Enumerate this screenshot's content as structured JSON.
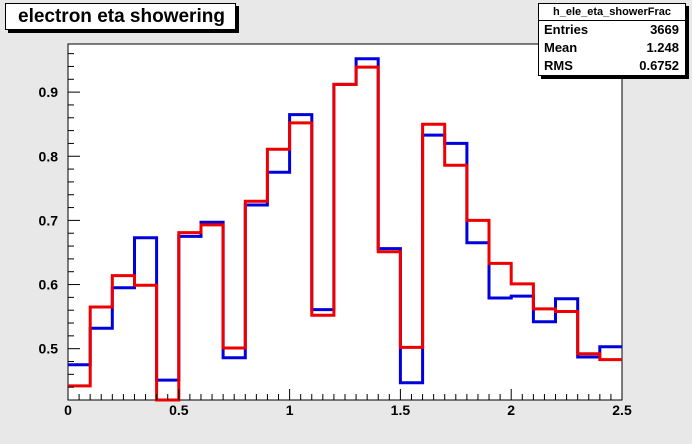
{
  "chart_data": {
    "type": "step-histogram",
    "title": "electron eta showering",
    "xlabel": "",
    "ylabel": "",
    "xlim": [
      0,
      2.5
    ],
    "ylim": [
      0.42,
      0.975
    ],
    "xticks": [
      0,
      0.5,
      1,
      1.5,
      2,
      2.5
    ],
    "xtick_labels": [
      "0",
      "0.5",
      "1",
      "1.5",
      "2",
      "2.5"
    ],
    "yticks": [
      0.5,
      0.6,
      0.7,
      0.8,
      0.9
    ],
    "ytick_labels": [
      "0.5",
      "0.6",
      "0.7",
      "0.8",
      "0.9"
    ],
    "bin_edges": [
      0,
      0.1,
      0.2,
      0.3,
      0.4,
      0.5,
      0.6,
      0.7,
      0.8,
      0.9,
      1.0,
      1.1,
      1.2,
      1.3,
      1.4,
      1.5,
      1.6,
      1.7,
      1.8,
      1.9,
      2.0,
      2.1,
      2.2,
      2.3,
      2.4,
      2.5
    ],
    "grid": false,
    "series": [
      {
        "color": "#0000dd",
        "values": [
          0.475,
          0.532,
          0.595,
          0.673,
          0.451,
          0.675,
          0.697,
          0.486,
          0.724,
          0.775,
          0.865,
          0.561,
          0.912,
          0.952,
          0.656,
          0.447,
          0.833,
          0.82,
          0.665,
          0.579,
          0.582,
          0.542,
          0.578,
          0.487,
          0.503
        ]
      },
      {
        "color": "#ee0000",
        "values": [
          0.442,
          0.565,
          0.614,
          0.599,
          0.42,
          0.681,
          0.693,
          0.501,
          0.73,
          0.811,
          0.852,
          0.552,
          0.912,
          0.939,
          0.651,
          0.502,
          0.85,
          0.786,
          0.7,
          0.633,
          0.601,
          0.562,
          0.558,
          0.492,
          0.483
        ]
      }
    ],
    "stats": {
      "name": "h_ele_eta_showerFrac",
      "rows": [
        {
          "label": "Entries",
          "value": "3669"
        },
        {
          "label": "Mean",
          "value": "1.248"
        },
        {
          "label": "RMS",
          "value": "0.6752"
        }
      ]
    }
  }
}
